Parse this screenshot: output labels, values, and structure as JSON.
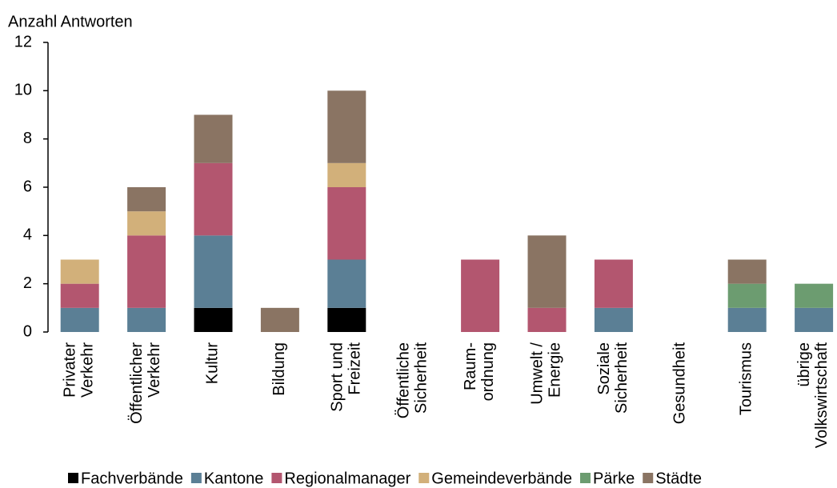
{
  "chart_data": {
    "type": "stacked_bar",
    "y_label": "Anzahl Antworten",
    "categories": [
      "Privater\nVerkehr",
      "Öffentlicher\nVerkehr",
      "Kultur",
      "Bildung",
      "Sport und\nFreizeit",
      "Öffentliche\nSicherheit",
      "Raum-\nordnung",
      "Umwelt /\nEnergie",
      "Soziale\nSicherheit",
      "Gesundheit",
      "Tourismus",
      "übrige\nVolkswirtschaft"
    ],
    "series": [
      {
        "name": "Fachverbände",
        "color": "#000000",
        "values": [
          0,
          0,
          1,
          0,
          1,
          0,
          0,
          0,
          0,
          0,
          0,
          0
        ]
      },
      {
        "name": "Kantone",
        "color": "#5b7f95",
        "values": [
          1,
          1,
          3,
          0,
          2,
          0,
          0,
          0,
          1,
          0,
          1,
          1
        ]
      },
      {
        "name": "Regionalmanager",
        "color": "#b3566f",
        "values": [
          1,
          3,
          3,
          0,
          3,
          0,
          3,
          1,
          2,
          0,
          0,
          0
        ]
      },
      {
        "name": "Gemeindeverbände",
        "color": "#d2b07a",
        "values": [
          1,
          1,
          0,
          0,
          1,
          0,
          0,
          0,
          0,
          0,
          0,
          0
        ]
      },
      {
        "name": "Pärke",
        "color": "#6c9c70",
        "values": [
          0,
          0,
          0,
          0,
          0,
          0,
          0,
          0,
          0,
          0,
          1,
          1
        ]
      },
      {
        "name": "Städte",
        "color": "#8a7463",
        "values": [
          0,
          1,
          2,
          1,
          3,
          0,
          0,
          3,
          0,
          0,
          1,
          0
        ]
      }
    ],
    "ylim": [
      0,
      12
    ],
    "yticks": [
      0,
      2,
      4,
      6,
      8,
      10,
      12
    ],
    "legend": "bottom"
  }
}
